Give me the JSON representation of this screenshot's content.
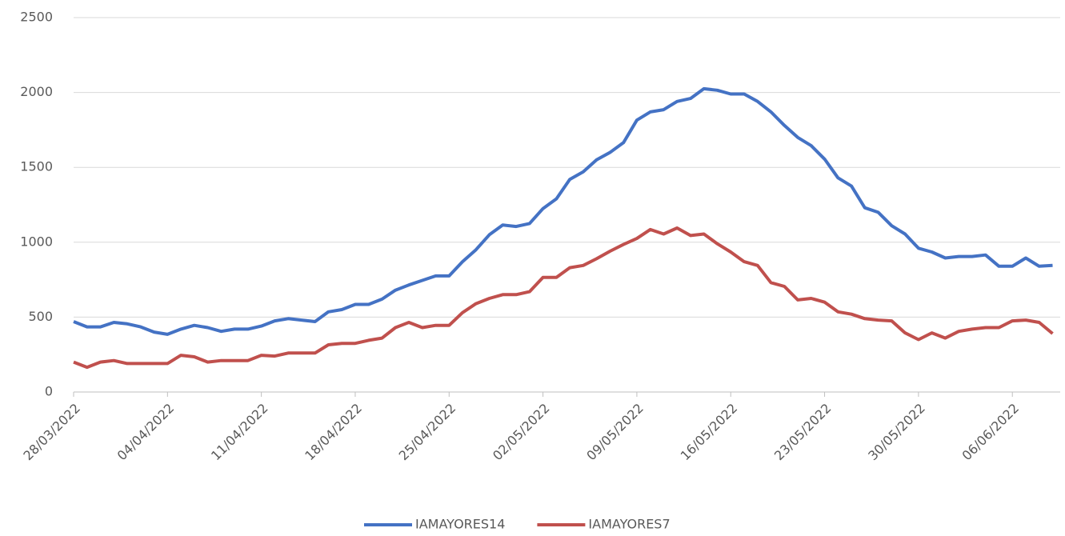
{
  "chart_data": {
    "type": "line",
    "categories": [
      "28/03/2022",
      null,
      null,
      null,
      null,
      null,
      null,
      "04/04/2022",
      null,
      null,
      null,
      null,
      null,
      null,
      "11/04/2022",
      null,
      null,
      null,
      null,
      null,
      null,
      "18/04/2022",
      null,
      null,
      null,
      null,
      null,
      null,
      "25/04/2022",
      null,
      null,
      null,
      null,
      null,
      null,
      "02/05/2022",
      null,
      null,
      null,
      null,
      null,
      null,
      "09/05/2022",
      null,
      null,
      null,
      null,
      null,
      null,
      "16/05/2022",
      null,
      null,
      null,
      null,
      null,
      null,
      "23/05/2022",
      null,
      null,
      null,
      null,
      null,
      null,
      "30/05/2022",
      null,
      null,
      null,
      null,
      null,
      null,
      "06/06/2022",
      null,
      null,
      null
    ],
    "series": [
      {
        "name": "IAMAYORES14",
        "color": "#4472c4",
        "values": [
          470,
          435,
          435,
          465,
          455,
          435,
          400,
          385,
          420,
          445,
          430,
          405,
          420,
          420,
          440,
          475,
          490,
          480,
          470,
          535,
          550,
          585,
          585,
          620,
          680,
          715,
          745,
          775,
          775,
          870,
          950,
          1050,
          1115,
          1105,
          1125,
          1225,
          1290,
          1420,
          1470,
          1550,
          1600,
          1665,
          1815,
          1870,
          1885,
          1940,
          1960,
          2025,
          2015,
          1990,
          1990,
          1940,
          1870,
          1780,
          1700,
          1645,
          1555,
          1430,
          1375,
          1230,
          1200,
          1110,
          1055,
          960,
          935,
          895,
          905,
          905,
          915,
          840,
          840,
          895,
          840,
          845
        ]
      },
      {
        "name": "IAMAYORES7",
        "color": "#c0504d",
        "values": [
          200,
          165,
          200,
          210,
          190,
          190,
          190,
          190,
          245,
          235,
          200,
          210,
          210,
          210,
          245,
          240,
          260,
          260,
          260,
          315,
          325,
          325,
          345,
          360,
          430,
          465,
          430,
          445,
          445,
          530,
          590,
          625,
          650,
          650,
          670,
          765,
          765,
          830,
          845,
          890,
          940,
          985,
          1025,
          1085,
          1055,
          1095,
          1045,
          1055,
          990,
          935,
          870,
          845,
          730,
          705,
          615,
          625,
          600,
          535,
          520,
          490,
          480,
          475,
          395,
          350,
          395,
          360,
          405,
          420,
          430,
          430,
          475,
          480,
          465,
          390
        ]
      }
    ],
    "ylim": [
      0,
      2500
    ],
    "yticks": [
      0,
      500,
      1000,
      1500,
      2000,
      2500
    ],
    "grid": true,
    "legend": "bottom"
  }
}
